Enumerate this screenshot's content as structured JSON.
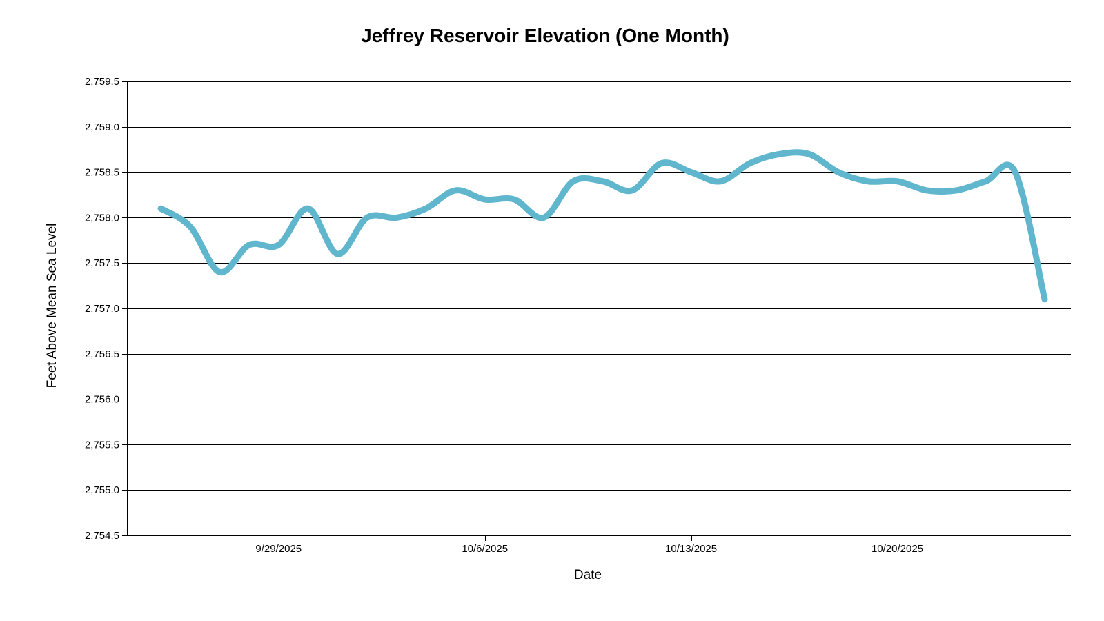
{
  "page": {
    "background_color": "#ffffff",
    "text_color": "#000000"
  },
  "chart_data": {
    "type": "line",
    "title": "Jeffrey Reservoir Elevation (One Month)",
    "xlabel": "Date",
    "ylabel": "Feet Above Mean Sea Level",
    "x": [
      "9/25/2025",
      "9/26/2025",
      "9/27/2025",
      "9/28/2025",
      "9/29/2025",
      "9/30/2025",
      "10/1/2025",
      "10/2/2025",
      "10/3/2025",
      "10/4/2025",
      "10/5/2025",
      "10/6/2025",
      "10/7/2025",
      "10/8/2025",
      "10/9/2025",
      "10/10/2025",
      "10/11/2025",
      "10/12/2025",
      "10/13/2025",
      "10/14/2025",
      "10/15/2025",
      "10/16/2025",
      "10/17/2025",
      "10/18/2025",
      "10/19/2025",
      "10/20/2025",
      "10/21/2025",
      "10/22/2025",
      "10/23/2025",
      "10/24/2025",
      "10/25/2025"
    ],
    "values": [
      2758.1,
      2757.9,
      2757.4,
      2757.7,
      2757.7,
      2758.1,
      2757.6,
      2758.0,
      2758.0,
      2758.1,
      2758.3,
      2758.2,
      2758.2,
      2758.0,
      2758.4,
      2758.4,
      2758.3,
      2758.6,
      2758.5,
      2758.4,
      2758.6,
      2758.7,
      2758.7,
      2758.5,
      2758.4,
      2758.4,
      2758.3,
      2758.3,
      2758.4,
      2758.5,
      2757.1
    ],
    "ylim": [
      2754.5,
      2759.5
    ],
    "y_ticks": [
      2754.5,
      2755.0,
      2755.5,
      2756.0,
      2756.5,
      2757.0,
      2757.5,
      2758.0,
      2758.5,
      2759.0,
      2759.5
    ],
    "y_tick_labels": [
      "2,754.5",
      "2,755.0",
      "2,755.5",
      "2,756.0",
      "2,756.5",
      "2,757.0",
      "2,757.5",
      "2,758.0",
      "2,758.5",
      "2,759.0",
      "2,759.5"
    ],
    "x_tick_labels": [
      "9/29/2025",
      "10/6/2025",
      "10/13/2025",
      "10/20/2025"
    ],
    "x_tick_indices": [
      4,
      11,
      18,
      25
    ],
    "grid": "horizontal-only",
    "legend": "none",
    "line_color": "#5FB6CD",
    "line_width": 9,
    "axis_color": "#000000"
  }
}
